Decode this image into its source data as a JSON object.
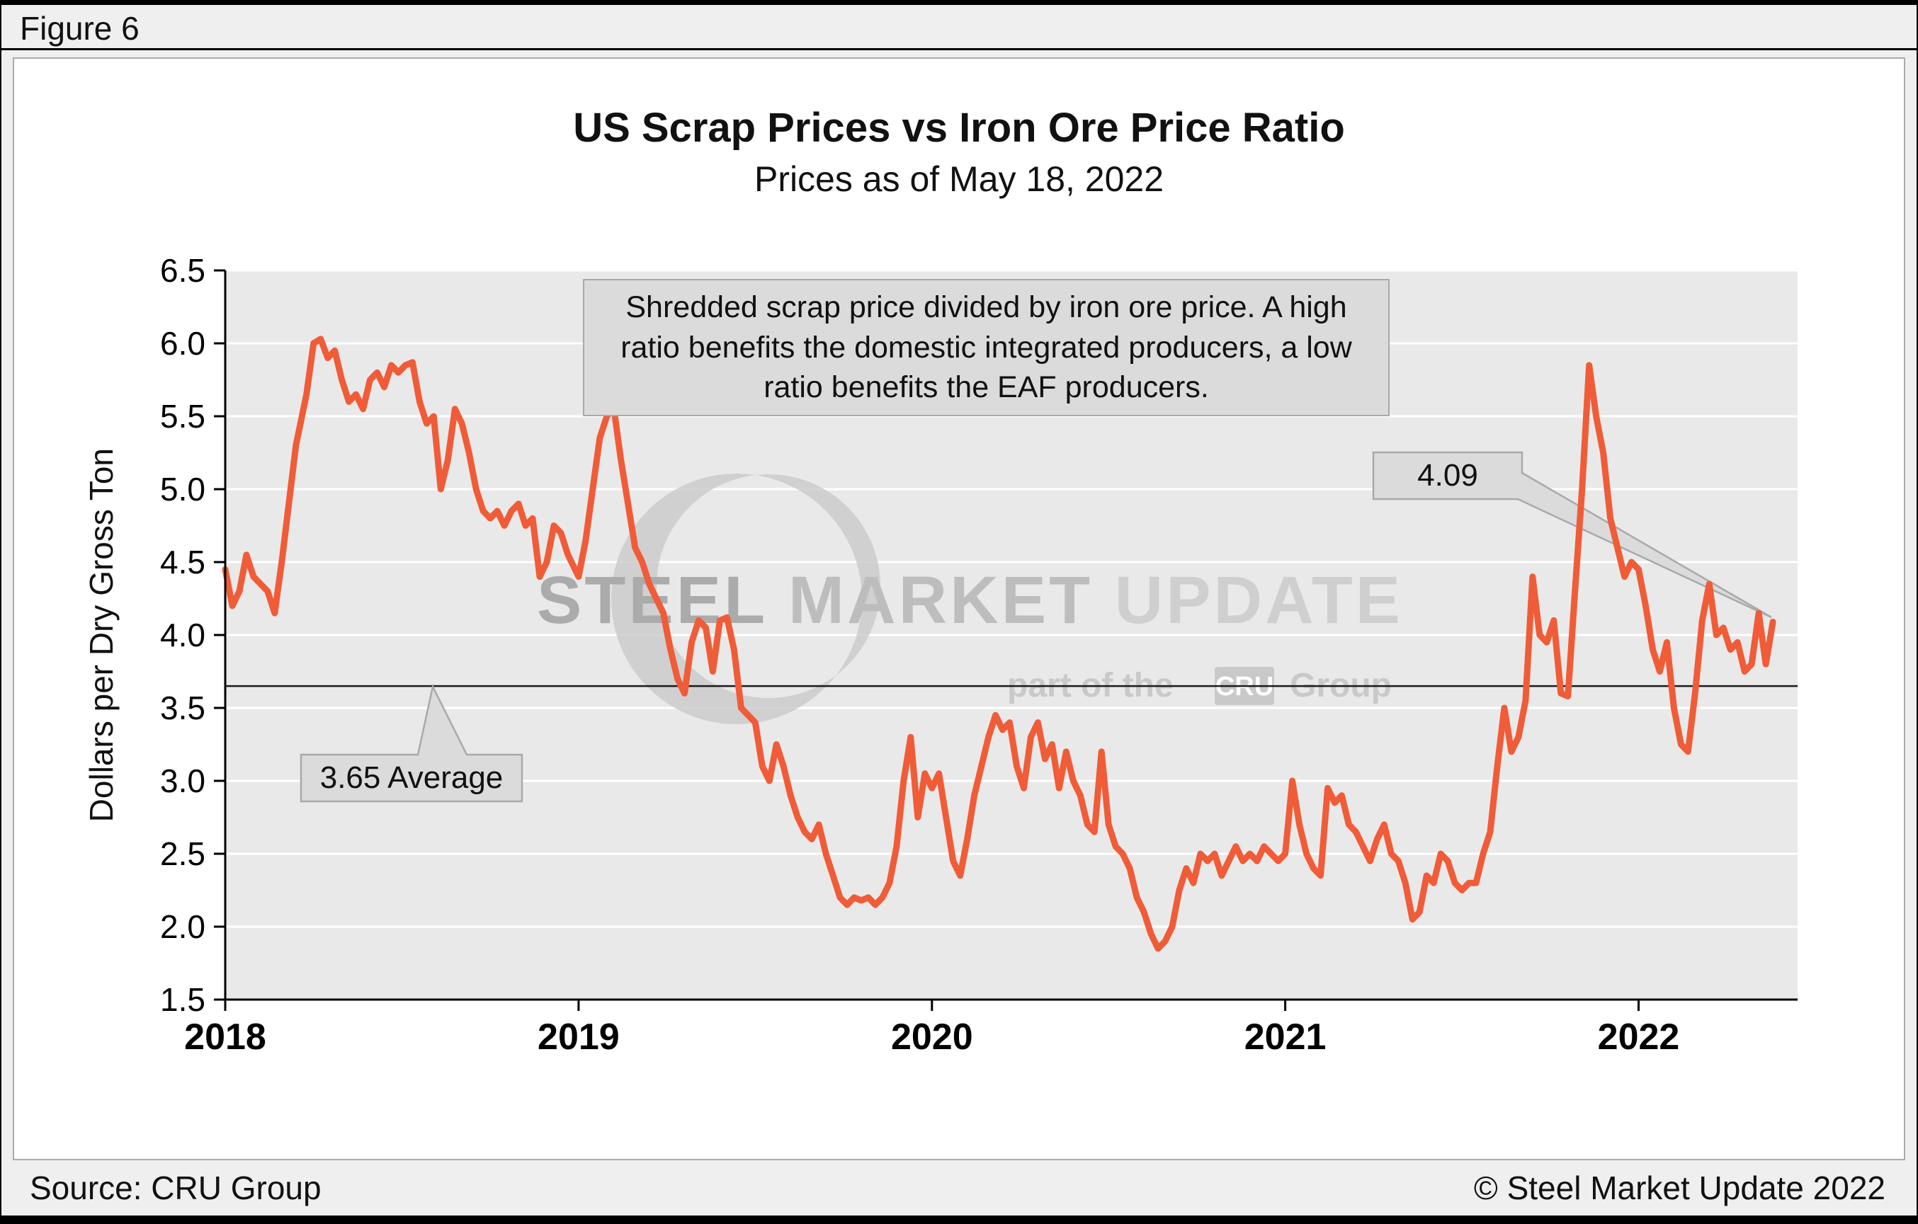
{
  "figure_label": "Figure 6",
  "footer": {
    "source": "Source: CRU Group",
    "copyright": "© Steel Market Update 2022"
  },
  "chart_data": {
    "type": "line",
    "title": "US Scrap Prices vs Iron Ore Price Ratio",
    "subtitle": "Prices as of May 18, 2022",
    "xlabel": "",
    "ylabel": "Dollars per Dry Gross Ton",
    "xlim": [
      2018,
      2022.45
    ],
    "ylim": [
      1.5,
      6.5
    ],
    "x_ticks": [
      2018,
      2019,
      2020,
      2021,
      2022
    ],
    "y_ticks": [
      1.5,
      2.0,
      2.5,
      3.0,
      3.5,
      4.0,
      4.5,
      5.0,
      5.5,
      6.0,
      6.5
    ],
    "grid": "horizontal",
    "legend": "none",
    "colors": {
      "line": "#F05C38",
      "plot_bg": "#E9E9E9",
      "page_bg": "#EFEFEF",
      "callout_bg": "#DBDBDB",
      "callout_border": "#A9A9A9"
    },
    "average_line": {
      "value": 3.65,
      "label": "3.65 Average"
    },
    "last_point": {
      "x": 2022.38,
      "value": 4.09,
      "label": "4.09"
    },
    "note": "Shredded scrap price divided by iron ore price. A high ratio benefits the domestic integrated producers, a low ratio benefits the EAF producers.",
    "watermark": {
      "words": [
        "STEEL",
        "MARKET",
        "UPDATE"
      ],
      "tagline_prefix": "part of the",
      "tagline_box": "CRU",
      "tagline_suffix": "Group"
    },
    "series": [
      {
        "name": "Shredded scrap price divided by iron ore price",
        "points": [
          [
            2018.0,
            4.45
          ],
          [
            2018.02,
            4.2
          ],
          [
            2018.04,
            4.3
          ],
          [
            2018.06,
            4.55
          ],
          [
            2018.08,
            4.4
          ],
          [
            2018.1,
            4.35
          ],
          [
            2018.12,
            4.3
          ],
          [
            2018.14,
            4.15
          ],
          [
            2018.16,
            4.5
          ],
          [
            2018.18,
            4.9
          ],
          [
            2018.2,
            5.3
          ],
          [
            2018.23,
            5.65
          ],
          [
            2018.25,
            6.0
          ],
          [
            2018.27,
            6.03
          ],
          [
            2018.29,
            5.9
          ],
          [
            2018.31,
            5.95
          ],
          [
            2018.33,
            5.75
          ],
          [
            2018.35,
            5.6
          ],
          [
            2018.37,
            5.65
          ],
          [
            2018.39,
            5.55
          ],
          [
            2018.41,
            5.75
          ],
          [
            2018.43,
            5.8
          ],
          [
            2018.45,
            5.7
          ],
          [
            2018.47,
            5.85
          ],
          [
            2018.49,
            5.8
          ],
          [
            2018.51,
            5.85
          ],
          [
            2018.53,
            5.87
          ],
          [
            2018.55,
            5.6
          ],
          [
            2018.57,
            5.45
          ],
          [
            2018.59,
            5.5
          ],
          [
            2018.61,
            5.0
          ],
          [
            2018.63,
            5.2
          ],
          [
            2018.65,
            5.55
          ],
          [
            2018.67,
            5.45
          ],
          [
            2018.69,
            5.25
          ],
          [
            2018.71,
            5.0
          ],
          [
            2018.73,
            4.85
          ],
          [
            2018.75,
            4.8
          ],
          [
            2018.77,
            4.85
          ],
          [
            2018.79,
            4.75
          ],
          [
            2018.81,
            4.85
          ],
          [
            2018.83,
            4.9
          ],
          [
            2018.85,
            4.75
          ],
          [
            2018.87,
            4.8
          ],
          [
            2018.89,
            4.4
          ],
          [
            2018.91,
            4.5
          ],
          [
            2018.93,
            4.75
          ],
          [
            2018.95,
            4.7
          ],
          [
            2018.97,
            4.55
          ],
          [
            2019.0,
            4.4
          ],
          [
            2019.02,
            4.65
          ],
          [
            2019.04,
            5.0
          ],
          [
            2019.06,
            5.35
          ],
          [
            2019.08,
            5.5
          ],
          [
            2019.1,
            5.55
          ],
          [
            2019.12,
            5.2
          ],
          [
            2019.14,
            4.9
          ],
          [
            2019.16,
            4.6
          ],
          [
            2019.18,
            4.5
          ],
          [
            2019.2,
            4.35
          ],
          [
            2019.22,
            4.25
          ],
          [
            2019.24,
            4.15
          ],
          [
            2019.26,
            3.9
          ],
          [
            2019.28,
            3.7
          ],
          [
            2019.3,
            3.6
          ],
          [
            2019.32,
            3.95
          ],
          [
            2019.34,
            4.1
          ],
          [
            2019.36,
            4.05
          ],
          [
            2019.38,
            3.75
          ],
          [
            2019.4,
            4.1
          ],
          [
            2019.42,
            4.12
          ],
          [
            2019.44,
            3.9
          ],
          [
            2019.46,
            3.5
          ],
          [
            2019.48,
            3.45
          ],
          [
            2019.5,
            3.4
          ],
          [
            2019.52,
            3.1
          ],
          [
            2019.54,
            3.0
          ],
          [
            2019.56,
            3.25
          ],
          [
            2019.58,
            3.1
          ],
          [
            2019.6,
            2.9
          ],
          [
            2019.62,
            2.75
          ],
          [
            2019.64,
            2.65
          ],
          [
            2019.66,
            2.6
          ],
          [
            2019.68,
            2.7
          ],
          [
            2019.7,
            2.5
          ],
          [
            2019.72,
            2.35
          ],
          [
            2019.74,
            2.2
          ],
          [
            2019.76,
            2.15
          ],
          [
            2019.78,
            2.2
          ],
          [
            2019.8,
            2.18
          ],
          [
            2019.82,
            2.2
          ],
          [
            2019.84,
            2.15
          ],
          [
            2019.86,
            2.2
          ],
          [
            2019.88,
            2.3
          ],
          [
            2019.9,
            2.55
          ],
          [
            2019.92,
            3.0
          ],
          [
            2019.94,
            3.3
          ],
          [
            2019.96,
            2.75
          ],
          [
            2019.98,
            3.05
          ],
          [
            2020.0,
            2.95
          ],
          [
            2020.02,
            3.05
          ],
          [
            2020.04,
            2.75
          ],
          [
            2020.06,
            2.45
          ],
          [
            2020.08,
            2.35
          ],
          [
            2020.1,
            2.6
          ],
          [
            2020.12,
            2.9
          ],
          [
            2020.14,
            3.1
          ],
          [
            2020.16,
            3.3
          ],
          [
            2020.18,
            3.45
          ],
          [
            2020.2,
            3.35
          ],
          [
            2020.22,
            3.4
          ],
          [
            2020.24,
            3.1
          ],
          [
            2020.26,
            2.95
          ],
          [
            2020.28,
            3.3
          ],
          [
            2020.3,
            3.4
          ],
          [
            2020.32,
            3.15
          ],
          [
            2020.34,
            3.25
          ],
          [
            2020.36,
            2.95
          ],
          [
            2020.38,
            3.2
          ],
          [
            2020.4,
            3.0
          ],
          [
            2020.42,
            2.9
          ],
          [
            2020.44,
            2.7
          ],
          [
            2020.46,
            2.65
          ],
          [
            2020.48,
            3.2
          ],
          [
            2020.5,
            2.7
          ],
          [
            2020.52,
            2.55
          ],
          [
            2020.54,
            2.5
          ],
          [
            2020.56,
            2.4
          ],
          [
            2020.58,
            2.2
          ],
          [
            2020.6,
            2.1
          ],
          [
            2020.62,
            1.95
          ],
          [
            2020.64,
            1.85
          ],
          [
            2020.66,
            1.9
          ],
          [
            2020.68,
            2.0
          ],
          [
            2020.7,
            2.25
          ],
          [
            2020.72,
            2.4
          ],
          [
            2020.74,
            2.3
          ],
          [
            2020.76,
            2.5
          ],
          [
            2020.78,
            2.45
          ],
          [
            2020.8,
            2.5
          ],
          [
            2020.82,
            2.35
          ],
          [
            2020.84,
            2.45
          ],
          [
            2020.86,
            2.55
          ],
          [
            2020.88,
            2.45
          ],
          [
            2020.9,
            2.5
          ],
          [
            2020.92,
            2.45
          ],
          [
            2020.94,
            2.55
          ],
          [
            2020.96,
            2.5
          ],
          [
            2020.98,
            2.45
          ],
          [
            2021.0,
            2.5
          ],
          [
            2021.02,
            3.0
          ],
          [
            2021.04,
            2.7
          ],
          [
            2021.06,
            2.5
          ],
          [
            2021.08,
            2.4
          ],
          [
            2021.1,
            2.35
          ],
          [
            2021.12,
            2.95
          ],
          [
            2021.14,
            2.85
          ],
          [
            2021.16,
            2.9
          ],
          [
            2021.18,
            2.7
          ],
          [
            2021.2,
            2.65
          ],
          [
            2021.22,
            2.55
          ],
          [
            2021.24,
            2.45
          ],
          [
            2021.26,
            2.6
          ],
          [
            2021.28,
            2.7
          ],
          [
            2021.3,
            2.5
          ],
          [
            2021.32,
            2.45
          ],
          [
            2021.34,
            2.3
          ],
          [
            2021.36,
            2.05
          ],
          [
            2021.38,
            2.1
          ],
          [
            2021.4,
            2.35
          ],
          [
            2021.42,
            2.3
          ],
          [
            2021.44,
            2.5
          ],
          [
            2021.46,
            2.45
          ],
          [
            2021.48,
            2.3
          ],
          [
            2021.5,
            2.25
          ],
          [
            2021.52,
            2.3
          ],
          [
            2021.54,
            2.3
          ],
          [
            2021.56,
            2.5
          ],
          [
            2021.58,
            2.65
          ],
          [
            2021.6,
            3.1
          ],
          [
            2021.62,
            3.5
          ],
          [
            2021.64,
            3.2
          ],
          [
            2021.66,
            3.3
          ],
          [
            2021.68,
            3.55
          ],
          [
            2021.7,
            4.4
          ],
          [
            2021.72,
            4.0
          ],
          [
            2021.74,
            3.95
          ],
          [
            2021.76,
            4.1
          ],
          [
            2021.78,
            3.6
          ],
          [
            2021.8,
            3.58
          ],
          [
            2021.82,
            4.3
          ],
          [
            2021.84,
            5.0
          ],
          [
            2021.86,
            5.85
          ],
          [
            2021.88,
            5.5
          ],
          [
            2021.9,
            5.25
          ],
          [
            2021.92,
            4.8
          ],
          [
            2021.94,
            4.6
          ],
          [
            2021.96,
            4.4
          ],
          [
            2021.98,
            4.5
          ],
          [
            2022.0,
            4.45
          ],
          [
            2022.02,
            4.2
          ],
          [
            2022.04,
            3.9
          ],
          [
            2022.06,
            3.75
          ],
          [
            2022.08,
            3.95
          ],
          [
            2022.1,
            3.5
          ],
          [
            2022.12,
            3.25
          ],
          [
            2022.14,
            3.2
          ],
          [
            2022.16,
            3.6
          ],
          [
            2022.18,
            4.1
          ],
          [
            2022.2,
            4.35
          ],
          [
            2022.22,
            4.0
          ],
          [
            2022.24,
            4.05
          ],
          [
            2022.26,
            3.9
          ],
          [
            2022.28,
            3.95
          ],
          [
            2022.3,
            3.75
          ],
          [
            2022.32,
            3.8
          ],
          [
            2022.34,
            4.15
          ],
          [
            2022.36,
            3.8
          ],
          [
            2022.38,
            4.09
          ]
        ]
      }
    ]
  }
}
